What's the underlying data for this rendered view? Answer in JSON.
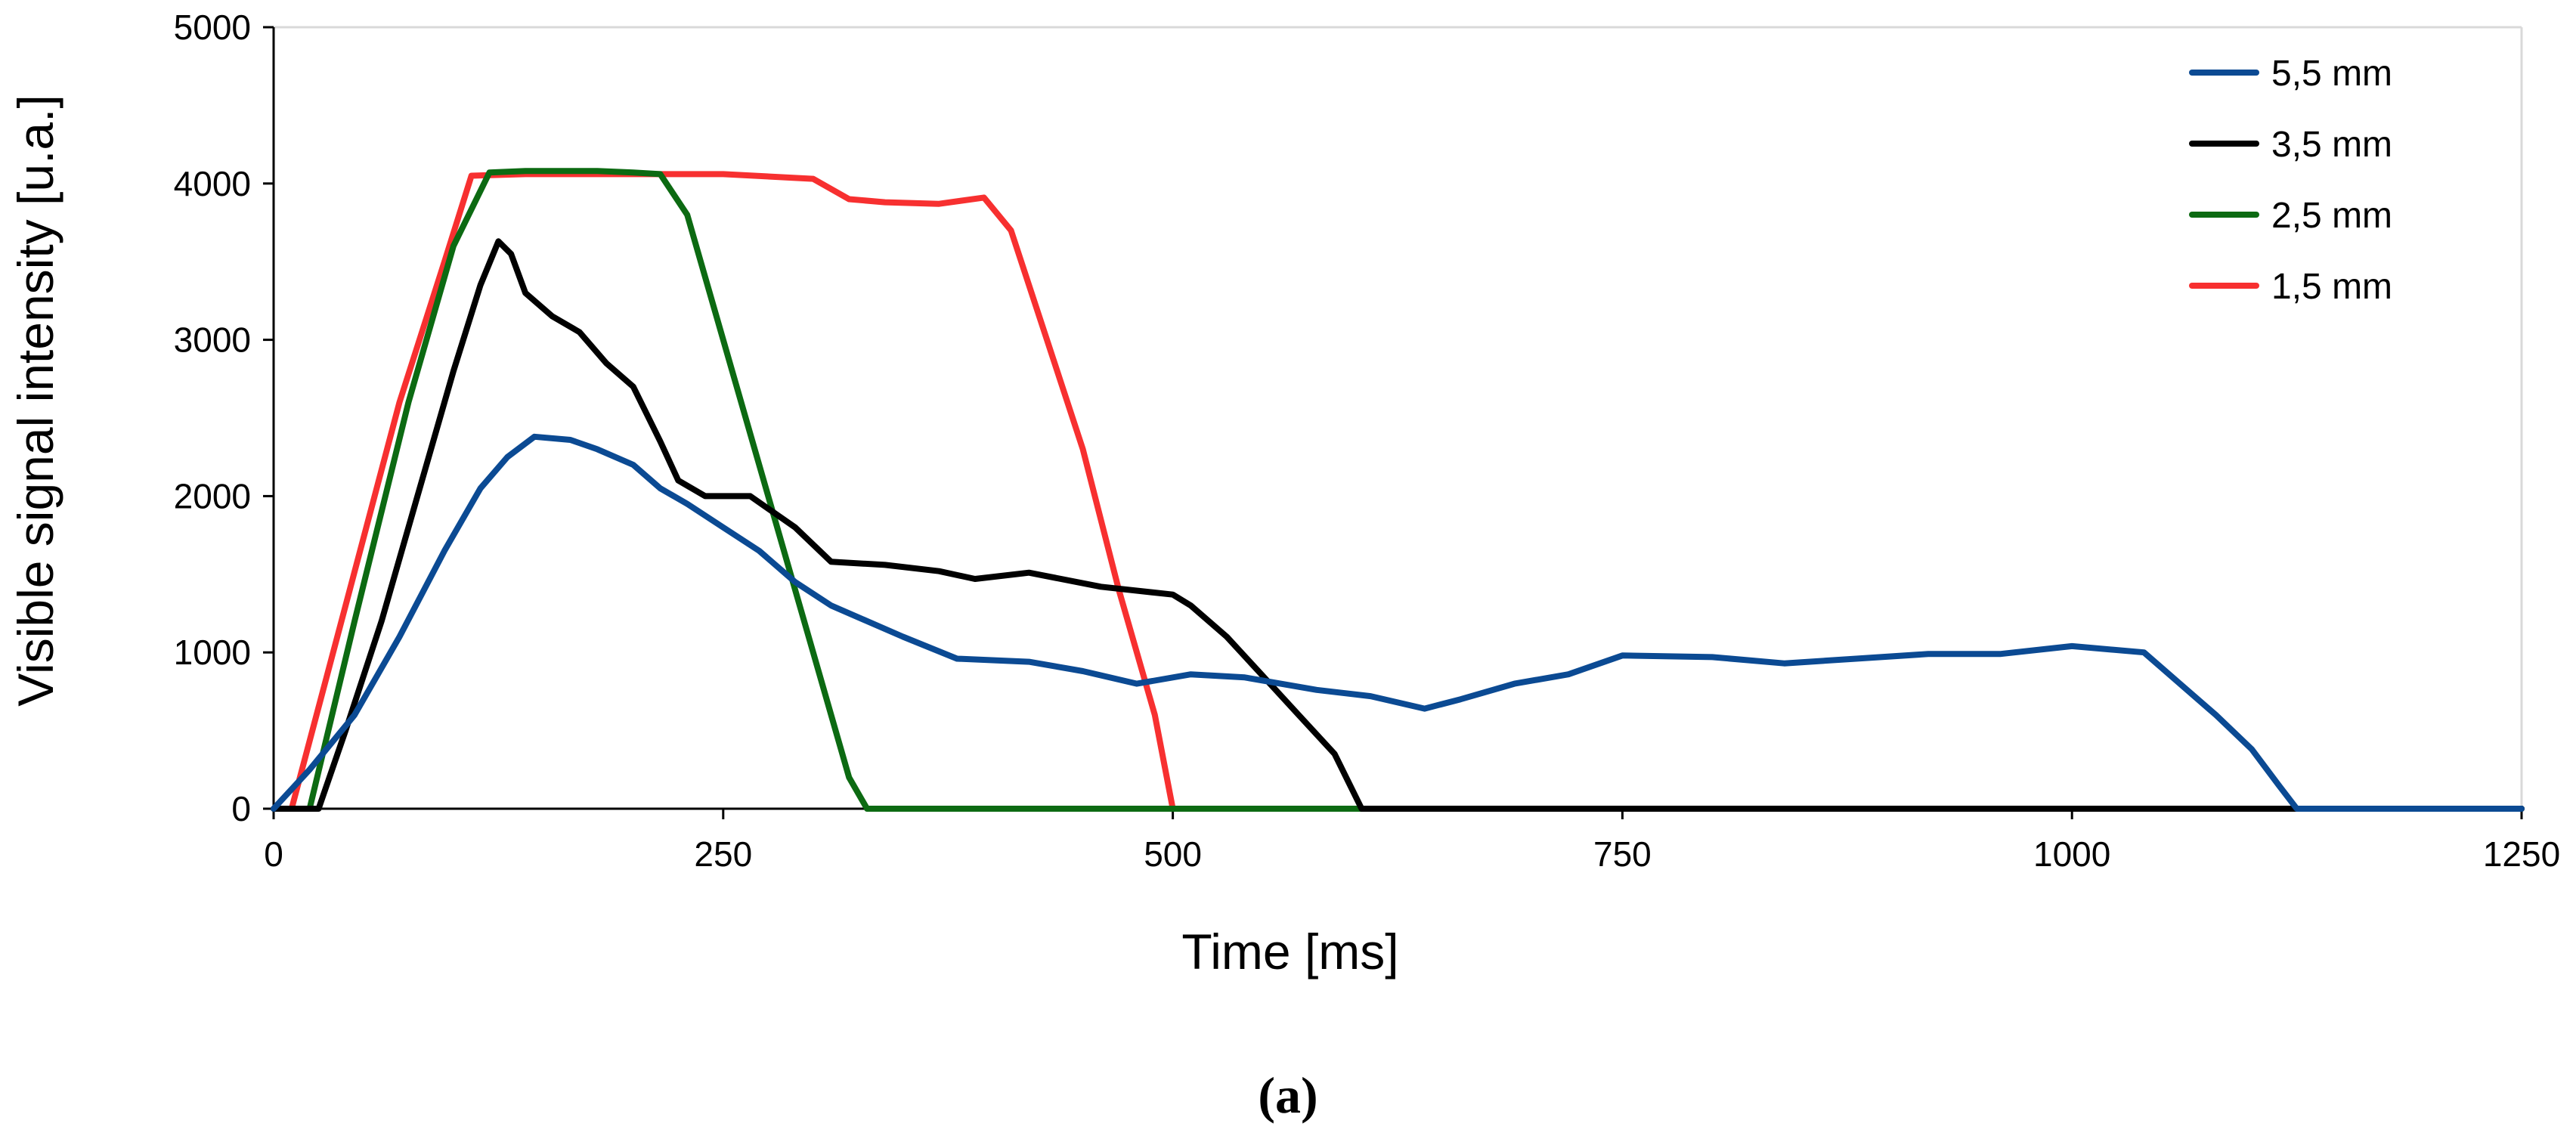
{
  "caption": "(a)",
  "chart_data": {
    "type": "line",
    "title": "",
    "xlabel": "Time [ms]",
    "ylabel": "Visible signal intensity [u.a.]",
    "xlim": [
      0,
      1250
    ],
    "ylim": [
      0,
      5000
    ],
    "xticks": [
      0,
      250,
      500,
      750,
      1000,
      1250
    ],
    "yticks": [
      0,
      1000,
      2000,
      3000,
      4000,
      5000
    ],
    "legend_position": "top-right",
    "series": [
      {
        "name": "5,5 mm",
        "color": "#0b4a93",
        "points": [
          [
            0,
            0
          ],
          [
            20,
            250
          ],
          [
            45,
            600
          ],
          [
            70,
            1100
          ],
          [
            95,
            1650
          ],
          [
            115,
            2050
          ],
          [
            130,
            2250
          ],
          [
            145,
            2380
          ],
          [
            165,
            2360
          ],
          [
            180,
            2300
          ],
          [
            200,
            2200
          ],
          [
            215,
            2050
          ],
          [
            230,
            1950
          ],
          [
            250,
            1800
          ],
          [
            270,
            1650
          ],
          [
            290,
            1450
          ],
          [
            310,
            1300
          ],
          [
            330,
            1200
          ],
          [
            350,
            1100
          ],
          [
            380,
            960
          ],
          [
            420,
            940
          ],
          [
            450,
            880
          ],
          [
            480,
            800
          ],
          [
            510,
            860
          ],
          [
            540,
            840
          ],
          [
            580,
            760
          ],
          [
            610,
            720
          ],
          [
            640,
            640
          ],
          [
            660,
            700
          ],
          [
            690,
            800
          ],
          [
            720,
            860
          ],
          [
            750,
            980
          ],
          [
            800,
            970
          ],
          [
            840,
            930
          ],
          [
            880,
            960
          ],
          [
            920,
            990
          ],
          [
            960,
            990
          ],
          [
            1000,
            1040
          ],
          [
            1040,
            1000
          ],
          [
            1060,
            800
          ],
          [
            1080,
            600
          ],
          [
            1100,
            380
          ],
          [
            1115,
            150
          ],
          [
            1125,
            0
          ],
          [
            1250,
            0
          ]
        ]
      },
      {
        "name": "3,5 mm",
        "color": "#000000",
        "points": [
          [
            0,
            0
          ],
          [
            25,
            0
          ],
          [
            40,
            500
          ],
          [
            60,
            1200
          ],
          [
            80,
            2000
          ],
          [
            100,
            2800
          ],
          [
            115,
            3350
          ],
          [
            125,
            3630
          ],
          [
            132,
            3550
          ],
          [
            140,
            3300
          ],
          [
            155,
            3150
          ],
          [
            170,
            3050
          ],
          [
            185,
            2850
          ],
          [
            200,
            2700
          ],
          [
            215,
            2350
          ],
          [
            225,
            2100
          ],
          [
            240,
            2000
          ],
          [
            265,
            2000
          ],
          [
            290,
            1800
          ],
          [
            310,
            1580
          ],
          [
            340,
            1560
          ],
          [
            370,
            1520
          ],
          [
            390,
            1470
          ],
          [
            420,
            1510
          ],
          [
            460,
            1420
          ],
          [
            500,
            1370
          ],
          [
            510,
            1300
          ],
          [
            530,
            1100
          ],
          [
            550,
            850
          ],
          [
            570,
            600
          ],
          [
            590,
            350
          ],
          [
            605,
            0
          ],
          [
            1250,
            0
          ]
        ]
      },
      {
        "name": "2,5 mm",
        "color": "#0c6a12",
        "points": [
          [
            0,
            0
          ],
          [
            20,
            0
          ],
          [
            45,
            1200
          ],
          [
            75,
            2600
          ],
          [
            100,
            3600
          ],
          [
            120,
            4070
          ],
          [
            140,
            4080
          ],
          [
            160,
            4080
          ],
          [
            180,
            4080
          ],
          [
            200,
            4070
          ],
          [
            215,
            4060
          ],
          [
            230,
            3800
          ],
          [
            255,
            2800
          ],
          [
            275,
            2000
          ],
          [
            300,
            1000
          ],
          [
            320,
            200
          ],
          [
            330,
            0
          ],
          [
            1250,
            0
          ]
        ]
      },
      {
        "name": "1,5 mm",
        "color": "#f73030",
        "points": [
          [
            0,
            0
          ],
          [
            10,
            0
          ],
          [
            40,
            1300
          ],
          [
            70,
            2600
          ],
          [
            95,
            3500
          ],
          [
            110,
            4050
          ],
          [
            140,
            4060
          ],
          [
            200,
            4060
          ],
          [
            250,
            4060
          ],
          [
            300,
            4030
          ],
          [
            320,
            3900
          ],
          [
            340,
            3880
          ],
          [
            370,
            3870
          ],
          [
            395,
            3910
          ],
          [
            410,
            3700
          ],
          [
            430,
            3000
          ],
          [
            450,
            2300
          ],
          [
            470,
            1400
          ],
          [
            490,
            600
          ],
          [
            500,
            0
          ],
          [
            1250,
            0
          ]
        ]
      }
    ]
  }
}
